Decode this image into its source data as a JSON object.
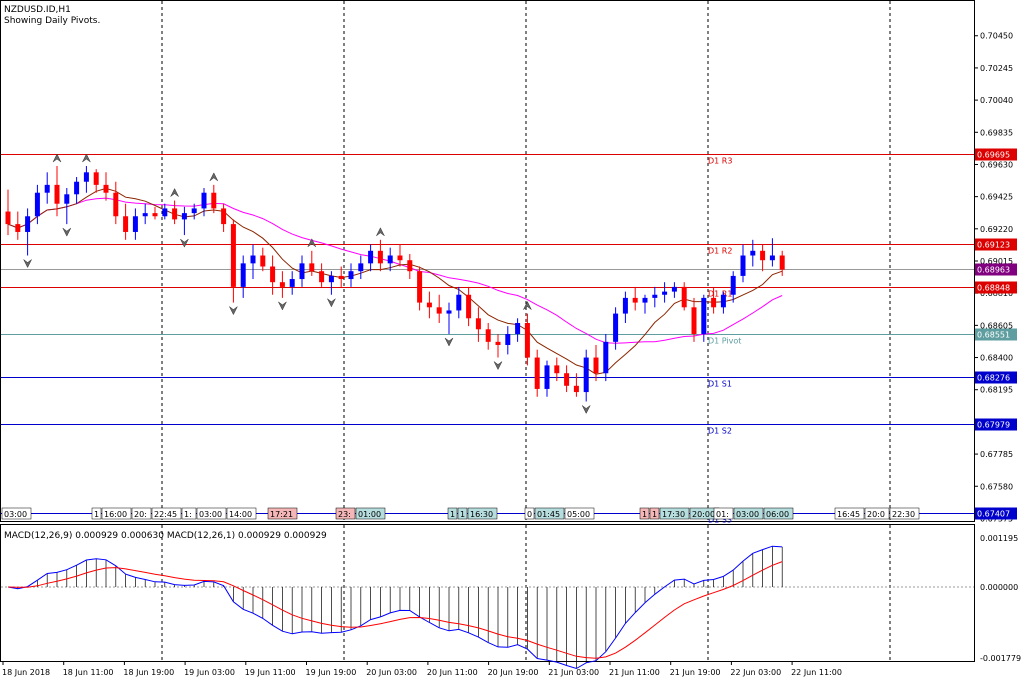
{
  "header": {
    "symbol": "NZDUSD.ID,H1",
    "note": "Showing Daily Pivots."
  },
  "colors": {
    "bull": "#0000ff",
    "bear": "#ff0000",
    "ma_fast": "#8b2500",
    "ma_slow": "#ff00ff",
    "resistance": "#dd0000",
    "support": "#0000cc",
    "pivot": "#5f9ea0",
    "macd_main": "#0000ff",
    "macd_signal": "#ff0000",
    "histogram": "#000000",
    "grid": "#000000"
  },
  "chart_data": {
    "type": "candlestick",
    "price_axis": {
      "ylim": [
        0.67365,
        0.70665
      ],
      "ticks": [
        "0.70450",
        "0.70245",
        "0.70040",
        "0.69835",
        "0.69630",
        "0.69425",
        "0.69220",
        "0.69015",
        "0.68810",
        "0.68605",
        "0.68400",
        "0.68195",
        "0.67990",
        "0.67785",
        "0.67580",
        "0.67375"
      ]
    },
    "pivots": [
      {
        "name": "D1 R3",
        "value": "0.69695",
        "kind": "resistance"
      },
      {
        "name": "D1 R2",
        "value": "0.69123",
        "kind": "resistance"
      },
      {
        "name": "D1 R1",
        "value": "0.68848",
        "kind": "resistance"
      },
      {
        "name": "D1 Pivot",
        "value": "0.68551",
        "kind": "pivot"
      },
      {
        "name": "D1 S1",
        "value": "0.68276",
        "kind": "support"
      },
      {
        "name": "D1 S2",
        "value": "0.67979",
        "kind": "support"
      },
      {
        "name": "D1 S3",
        "value": "0.67407",
        "kind": "support"
      }
    ],
    "current_price": "0.68963",
    "session_markers": [
      "03:00",
      "1",
      "16:00",
      "20:",
      "22:45",
      "1:",
      "03:00",
      "14:00",
      "17:21",
      "23:",
      "01:00",
      "1",
      "1",
      "16:30",
      "0",
      "01:45",
      "05:00",
      "1",
      "1",
      "17:30",
      "20:00",
      "01:",
      "03:00",
      "06:00",
      "16:45",
      "20:0",
      "22:30"
    ],
    "time_labels": [
      "18 Jun 2018",
      "18 Jun 11:00",
      "18 Jun 19:00",
      "19 Jun 03:00",
      "19 Jun 11:00",
      "19 Jun 19:00",
      "20 Jun 03:00",
      "20 Jun 11:00",
      "20 Jun 19:00",
      "21 Jun 03:00",
      "21 Jun 11:00",
      "21 Jun 19:00",
      "22 Jun 03:00",
      "22 Jun 11:00"
    ],
    "candles": [
      [
        0.6933,
        0.6947,
        0.6918,
        0.6925
      ],
      [
        0.6925,
        0.6933,
        0.6915,
        0.692
      ],
      [
        0.692,
        0.6935,
        0.6905,
        0.693
      ],
      [
        0.693,
        0.695,
        0.6925,
        0.6945
      ],
      [
        0.6945,
        0.6958,
        0.6938,
        0.695
      ],
      [
        0.695,
        0.6962,
        0.693,
        0.6938
      ],
      [
        0.6938,
        0.6948,
        0.6925,
        0.6944
      ],
      [
        0.6944,
        0.6955,
        0.6938,
        0.6952
      ],
      [
        0.6952,
        0.6962,
        0.6945,
        0.6958
      ],
      [
        0.6958,
        0.696,
        0.6945,
        0.695
      ],
      [
        0.695,
        0.6958,
        0.694,
        0.6945
      ],
      [
        0.6945,
        0.6952,
        0.6925,
        0.693
      ],
      [
        0.693,
        0.6938,
        0.6915,
        0.692
      ],
      [
        0.692,
        0.6935,
        0.6915,
        0.693
      ],
      [
        0.693,
        0.6938,
        0.6925,
        0.6932
      ],
      [
        0.6932,
        0.6936,
        0.6928,
        0.693
      ],
      [
        0.693,
        0.6938,
        0.6928,
        0.6935
      ],
      [
        0.6935,
        0.694,
        0.6925,
        0.6928
      ],
      [
        0.6928,
        0.6936,
        0.6918,
        0.6932
      ],
      [
        0.6932,
        0.6938,
        0.6928,
        0.6935
      ],
      [
        0.6935,
        0.6948,
        0.693,
        0.6945
      ],
      [
        0.6945,
        0.695,
        0.6932,
        0.6935
      ],
      [
        0.6935,
        0.6938,
        0.692,
        0.6925
      ],
      [
        0.6925,
        0.6928,
        0.6875,
        0.6885
      ],
      [
        0.6885,
        0.6905,
        0.6878,
        0.69
      ],
      [
        0.69,
        0.6912,
        0.689,
        0.6905
      ],
      [
        0.6905,
        0.691,
        0.6895,
        0.6898
      ],
      [
        0.6898,
        0.6905,
        0.688,
        0.6888
      ],
      [
        0.6888,
        0.6895,
        0.6878,
        0.6885
      ],
      [
        0.6885,
        0.6895,
        0.688,
        0.689
      ],
      [
        0.689,
        0.6905,
        0.6885,
        0.69
      ],
      [
        0.69,
        0.6908,
        0.6892,
        0.6895
      ],
      [
        0.6895,
        0.69,
        0.6885,
        0.6888
      ],
      [
        0.6888,
        0.6895,
        0.688,
        0.6892
      ],
      [
        0.6892,
        0.6898,
        0.6885,
        0.689
      ],
      [
        0.689,
        0.69,
        0.6885,
        0.6895
      ],
      [
        0.6895,
        0.6905,
        0.689,
        0.69
      ],
      [
        0.69,
        0.6912,
        0.6895,
        0.6908
      ],
      [
        0.6908,
        0.6915,
        0.6895,
        0.69
      ],
      [
        0.69,
        0.691,
        0.6895,
        0.6905
      ],
      [
        0.6905,
        0.6912,
        0.6898,
        0.6902
      ],
      [
        0.6902,
        0.6906,
        0.689,
        0.6895
      ],
      [
        0.6895,
        0.6898,
        0.687,
        0.6875
      ],
      [
        0.6875,
        0.6882,
        0.6865,
        0.6872
      ],
      [
        0.6872,
        0.688,
        0.6862,
        0.6868
      ],
      [
        0.6868,
        0.6875,
        0.6855,
        0.687
      ],
      [
        0.687,
        0.6885,
        0.6865,
        0.688
      ],
      [
        0.688,
        0.6885,
        0.686,
        0.6865
      ],
      [
        0.6865,
        0.6872,
        0.685,
        0.6858
      ],
      [
        0.6858,
        0.6862,
        0.6845,
        0.685
      ],
      [
        0.685,
        0.6855,
        0.684,
        0.6848
      ],
      [
        0.6848,
        0.686,
        0.6842,
        0.6855
      ],
      [
        0.6855,
        0.6865,
        0.685,
        0.6862
      ],
      [
        0.6862,
        0.6868,
        0.6835,
        0.684
      ],
      [
        0.684,
        0.6845,
        0.6815,
        0.682
      ],
      [
        0.682,
        0.6838,
        0.6815,
        0.6835
      ],
      [
        0.6835,
        0.684,
        0.6825,
        0.683
      ],
      [
        0.683,
        0.6835,
        0.6818,
        0.6822
      ],
      [
        0.6822,
        0.683,
        0.6815,
        0.6818
      ],
      [
        0.6818,
        0.6845,
        0.6812,
        0.684
      ],
      [
        0.684,
        0.6848,
        0.6825,
        0.683
      ],
      [
        0.683,
        0.6855,
        0.6825,
        0.685
      ],
      [
        0.685,
        0.6872,
        0.6845,
        0.6868
      ],
      [
        0.6868,
        0.6882,
        0.6862,
        0.6878
      ],
      [
        0.6878,
        0.6885,
        0.687,
        0.6875
      ],
      [
        0.6875,
        0.688,
        0.6868,
        0.6878
      ],
      [
        0.6878,
        0.6885,
        0.6872,
        0.688
      ],
      [
        0.688,
        0.6888,
        0.6875,
        0.6882
      ],
      [
        0.6882,
        0.6888,
        0.6878,
        0.6885
      ],
      [
        0.6885,
        0.6888,
        0.687,
        0.6872
      ],
      [
        0.6872,
        0.6878,
        0.685,
        0.6855
      ],
      [
        0.6855,
        0.688,
        0.685,
        0.6878
      ],
      [
        0.6878,
        0.6885,
        0.6868,
        0.6872
      ],
      [
        0.6872,
        0.6882,
        0.6868,
        0.688
      ],
      [
        0.688,
        0.6895,
        0.6875,
        0.6892
      ],
      [
        0.6892,
        0.6912,
        0.6888,
        0.6905
      ],
      [
        0.6905,
        0.6915,
        0.6898,
        0.6908
      ],
      [
        0.6908,
        0.6912,
        0.6895,
        0.6902
      ],
      [
        0.6902,
        0.6916,
        0.6898,
        0.6905
      ],
      [
        0.6905,
        0.6908,
        0.6892,
        0.6896
      ]
    ],
    "macd": {
      "legend": "MACD(12,26,9) 0.000929 0.000630 MACD(12,26,1) 0.000929 0.000929",
      "ticks": [
        "0.001195",
        "0.000000",
        "-0.001779"
      ],
      "ylim": [
        -0.001779,
        0.001195
      ]
    }
  }
}
